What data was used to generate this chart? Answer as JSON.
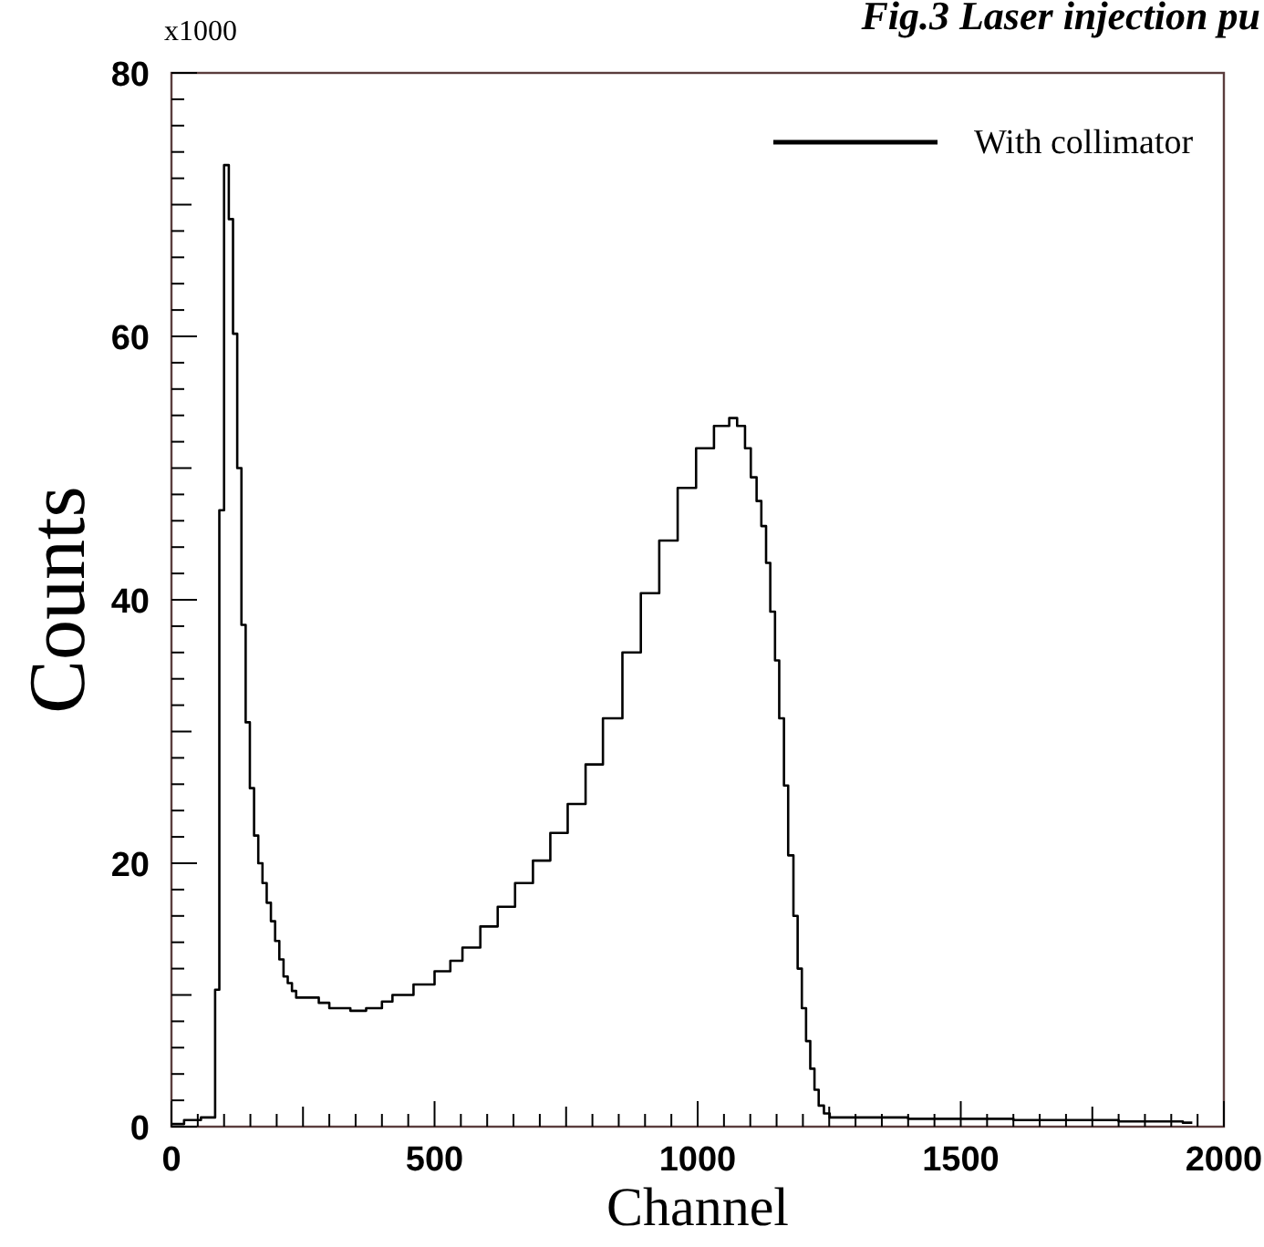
{
  "chart_data": {
    "type": "step",
    "title": "Fig.3 Laser injection pu",
    "xlabel": "Channel",
    "ylabel": "Counts",
    "annotations": [
      "x1000"
    ],
    "x": [
      0,
      24,
      56,
      83,
      91,
      100,
      109,
      117,
      125,
      133,
      141,
      149,
      157,
      165,
      173,
      181,
      189,
      197,
      205,
      213,
      221,
      229,
      237,
      280,
      300,
      340,
      370,
      400,
      420,
      460,
      500,
      530,
      553,
      587,
      620,
      653,
      687,
      720,
      753,
      787,
      820,
      857,
      892,
      927,
      962,
      997,
      1031,
      1060,
      1075,
      1090,
      1101,
      1112,
      1121,
      1130,
      1138,
      1147,
      1155,
      1164,
      1172,
      1182,
      1190,
      1198,
      1206,
      1214,
      1222,
      1230,
      1240,
      1251,
      1400,
      1600,
      1800,
      1922,
      1940
    ],
    "series": [
      {
        "name": "With collimator",
        "color": "#000000",
        "values": [
          0.2,
          0.5,
          0.7,
          10.4,
          46.8,
          73,
          68.9,
          60.2,
          50,
          38.1,
          30.7,
          25.7,
          22.1,
          20,
          18.5,
          17,
          15.6,
          14.1,
          12.7,
          11.4,
          10.9,
          10.3,
          9.8,
          9.4,
          9.0,
          8.8,
          9.0,
          9.5,
          10,
          10.8,
          11.8,
          12.6,
          13.6,
          15.2,
          16.7,
          18.5,
          20.2,
          22.3,
          24.5,
          27.5,
          31,
          36,
          40.5,
          44.5,
          48.5,
          51.5,
          53.2,
          53.8,
          53.2,
          51.5,
          49.3,
          47.5,
          45.6,
          42.8,
          39.1,
          35.4,
          31,
          25.9,
          20.6,
          16,
          12,
          9,
          6.5,
          4.4,
          2.8,
          1.6,
          1.0,
          0.7,
          0.6,
          0.5,
          0.4,
          0.3,
          0.3
        ]
      }
    ],
    "xlim": [
      0,
      2000
    ],
    "ylim": [
      0,
      80
    ],
    "xticks": [
      0,
      {
        "value": 50,
        "label": null
      },
      {
        "value": 100,
        "label": null
      },
      {
        "value": 150,
        "label": null
      },
      {
        "value": 200,
        "label": null
      },
      {
        "value": 250,
        "label": null
      },
      {
        "value": 300,
        "label": null
      },
      {
        "value": 350,
        "label": null
      },
      {
        "value": 400,
        "label": null
      },
      {
        "value": 450,
        "label": null
      },
      500,
      {
        "value": 550,
        "label": null
      },
      {
        "value": 600,
        "label": null
      },
      {
        "value": 650,
        "label": null
      },
      {
        "value": 700,
        "label": null
      },
      {
        "value": 750,
        "label": null
      },
      {
        "value": 800,
        "label": null
      },
      {
        "value": 850,
        "label": null
      },
      {
        "value": 900,
        "label": null
      },
      {
        "value": 950,
        "label": null
      },
      1000,
      {
        "value": 1050,
        "label": null
      },
      {
        "value": 1100,
        "label": null
      },
      {
        "value": 1150,
        "label": null
      },
      {
        "value": 1200,
        "label": null
      },
      {
        "value": 1250,
        "label": null
      },
      {
        "value": 1300,
        "label": null
      },
      {
        "value": 1350,
        "label": null
      },
      {
        "value": 1400,
        "label": null
      },
      {
        "value": 1450,
        "label": null
      },
      1500,
      {
        "value": 1550,
        "label": null
      },
      {
        "value": 1600,
        "label": null
      },
      {
        "value": 1650,
        "label": null
      },
      {
        "value": 1700,
        "label": null
      },
      {
        "value": 1750,
        "label": null
      },
      {
        "value": 1800,
        "label": null
      },
      {
        "value": 1850,
        "label": null
      },
      {
        "value": 1900,
        "label": null
      },
      {
        "value": 1950,
        "label": null
      },
      2000
    ],
    "yticks": [
      0,
      {
        "value": 2,
        "label": null
      },
      {
        "value": 4,
        "label": null
      },
      {
        "value": 6,
        "label": null
      },
      {
        "value": 8,
        "label": null
      },
      {
        "value": 10,
        "label": null
      },
      {
        "value": 12,
        "label": null
      },
      {
        "value": 14,
        "label": null
      },
      {
        "value": 16,
        "label": null
      },
      {
        "value": 18,
        "label": null
      },
      20,
      {
        "value": 22,
        "label": null
      },
      {
        "value": 24,
        "label": null
      },
      {
        "value": 26,
        "label": null
      },
      {
        "value": 28,
        "label": null
      },
      {
        "value": 30,
        "label": null
      },
      {
        "value": 32,
        "label": null
      },
      {
        "value": 34,
        "label": null
      },
      {
        "value": 36,
        "label": null
      },
      {
        "value": 38,
        "label": null
      },
      40,
      {
        "value": 42,
        "label": null
      },
      {
        "value": 44,
        "label": null
      },
      {
        "value": 46,
        "label": null
      },
      {
        "value": 48,
        "label": null
      },
      {
        "value": 50,
        "label": null
      },
      {
        "value": 52,
        "label": null
      },
      {
        "value": 54,
        "label": null
      },
      {
        "value": 56,
        "label": null
      },
      {
        "value": 58,
        "label": null
      },
      60,
      {
        "value": 62,
        "label": null
      },
      {
        "value": 64,
        "label": null
      },
      {
        "value": 66,
        "label": null
      },
      {
        "value": 68,
        "label": null
      },
      {
        "value": 70,
        "label": null
      },
      {
        "value": 72,
        "label": null
      },
      {
        "value": 74,
        "label": null
      },
      {
        "value": 76,
        "label": null
      },
      {
        "value": 78,
        "label": null
      },
      80
    ],
    "legend": "top right",
    "grid": false
  }
}
